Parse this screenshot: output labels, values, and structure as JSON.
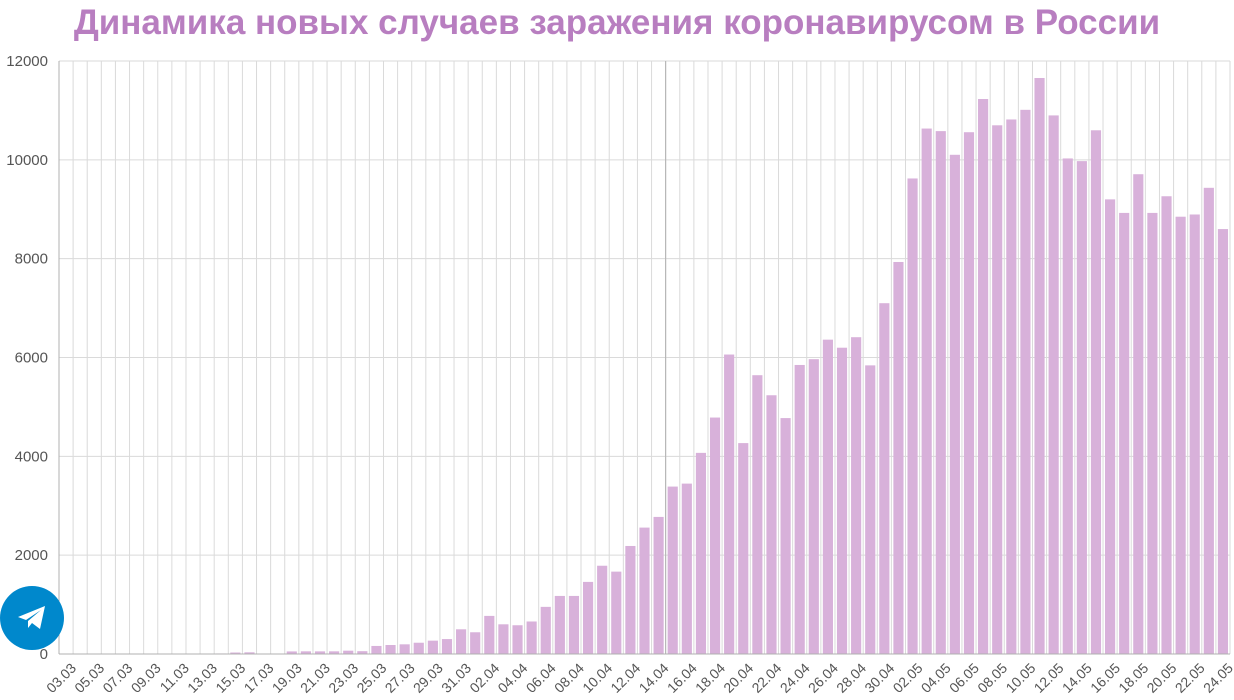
{
  "chart_data": {
    "type": "bar",
    "title": "Динамика новых случаев заражения коронавирусом в России",
    "xlabel": "",
    "ylabel": "",
    "ylim": [
      0,
      12000
    ],
    "yticks": [
      0,
      2000,
      4000,
      6000,
      8000,
      10000,
      12000
    ],
    "grid": true,
    "categories": [
      "03.03",
      "04.03",
      "05.03",
      "06.03",
      "07.03",
      "08.03",
      "09.03",
      "10.03",
      "11.03",
      "12.03",
      "13.03",
      "14.03",
      "15.03",
      "16.03",
      "17.03",
      "18.03",
      "19.03",
      "20.03",
      "21.03",
      "22.03",
      "23.03",
      "24.03",
      "25.03",
      "26.03",
      "27.03",
      "28.03",
      "29.03",
      "30.03",
      "31.03",
      "01.04",
      "02.04",
      "03.04",
      "04.04",
      "05.04",
      "06.04",
      "07.04",
      "08.04",
      "09.04",
      "10.04",
      "11.04",
      "12.04",
      "13.04",
      "14.04",
      "15.04",
      "16.04",
      "17.04",
      "18.04",
      "19.04",
      "20.04",
      "21.04",
      "22.04",
      "23.04",
      "24.04",
      "25.04",
      "26.04",
      "27.04",
      "28.04",
      "29.04",
      "30.04",
      "01.05",
      "02.05",
      "03.05",
      "04.05",
      "05.05",
      "06.05",
      "07.05",
      "08.05",
      "09.05",
      "10.05",
      "11.05",
      "12.05",
      "13.05",
      "14.05",
      "15.05",
      "16.05",
      "17.05",
      "18.05",
      "19.05",
      "20.05",
      "21.05",
      "22.05",
      "23.05",
      "24.05"
    ],
    "values": [
      1,
      0,
      1,
      0,
      3,
      4,
      0,
      3,
      8,
      6,
      6,
      11,
      30,
      34,
      3,
      0,
      52,
      54,
      53,
      54,
      67,
      57,
      163,
      182,
      196,
      228,
      270,
      302,
      500,
      440,
      771,
      601,
      582,
      658,
      954,
      1175,
      1175,
      1459,
      1786,
      1667,
      2186,
      2558,
      2774,
      3388,
      3448,
      4070,
      4785,
      6060,
      4268,
      5642,
      5236,
      4774,
      5849,
      5966,
      6361,
      6198,
      6411,
      5841,
      7099,
      7933,
      9623,
      10633,
      10581,
      10102,
      10559,
      11231,
      10699,
      10817,
      11012,
      11656,
      10899,
      10028,
      9974,
      10598,
      9200,
      8926,
      9709,
      8926,
      9263,
      8849,
      8894,
      9434,
      8599
    ],
    "colors": {
      "bar": "#d8b1da",
      "title": "#b87ec0",
      "grid": "#dadada",
      "axis": "#b0b0b0"
    }
  },
  "overlay": {
    "share_icon": "telegram-icon",
    "share_color": "#0088cc"
  }
}
